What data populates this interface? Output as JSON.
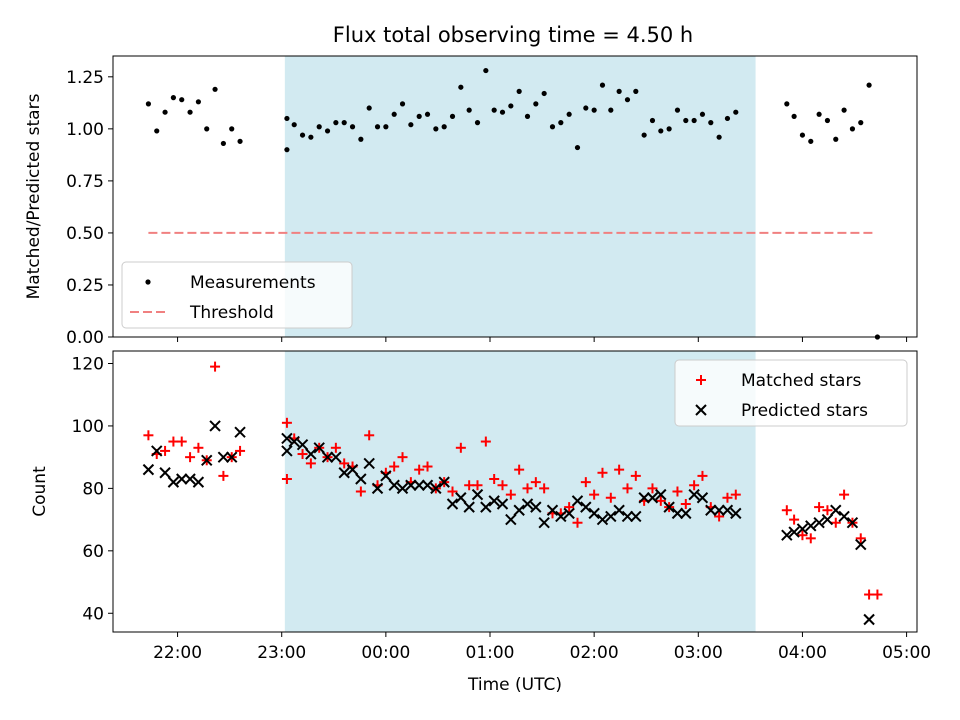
{
  "figure": {
    "title": "Flux total observing time = 4.50 h"
  },
  "chart_data": [
    {
      "type": "scatter",
      "panel": "top",
      "ylabel": "Matched/Predicted stars",
      "ylim": [
        0,
        1.35
      ],
      "yticks": [
        "0.00",
        "0.25",
        "0.50",
        "0.75",
        "1.00",
        "1.25"
      ],
      "xlim_hours": [
        21.38,
        29.1
      ],
      "shaded_span_hours": [
        23.03,
        27.55
      ],
      "shade_color": "#add8e6",
      "grid": false,
      "legend": {
        "placement": "lower-left",
        "entries": [
          "Measurements",
          "Threshold"
        ]
      },
      "threshold": {
        "name": "Threshold",
        "value": 0.5,
        "x_range_hours": [
          21.72,
          28.7
        ],
        "color": "#f08080"
      },
      "series": [
        {
          "name": "Measurements",
          "color": "#000000",
          "marker": "dot",
          "points": [
            [
              21.72,
              1.12
            ],
            [
              21.8,
              0.99
            ],
            [
              21.88,
              1.08
            ],
            [
              21.96,
              1.15
            ],
            [
              22.04,
              1.14
            ],
            [
              22.12,
              1.08
            ],
            [
              22.2,
              1.13
            ],
            [
              22.28,
              1.0
            ],
            [
              22.36,
              1.19
            ],
            [
              22.44,
              0.93
            ],
            [
              22.52,
              1.0
            ],
            [
              22.6,
              0.94
            ],
            [
              23.05,
              1.05
            ],
            [
              23.05,
              0.9
            ],
            [
              23.12,
              1.02
            ],
            [
              23.2,
              0.97
            ],
            [
              23.28,
              0.96
            ],
            [
              23.36,
              1.01
            ],
            [
              23.44,
              0.99
            ],
            [
              23.52,
              1.03
            ],
            [
              23.6,
              1.03
            ],
            [
              23.68,
              1.01
            ],
            [
              23.76,
              0.95
            ],
            [
              23.84,
              1.1
            ],
            [
              23.92,
              1.01
            ],
            [
              24.0,
              1.01
            ],
            [
              24.08,
              1.07
            ],
            [
              24.16,
              1.12
            ],
            [
              24.24,
              1.02
            ],
            [
              24.32,
              1.06
            ],
            [
              24.4,
              1.07
            ],
            [
              24.48,
              1.0
            ],
            [
              24.56,
              1.01
            ],
            [
              24.64,
              1.06
            ],
            [
              24.72,
              1.2
            ],
            [
              24.8,
              1.09
            ],
            [
              24.88,
              1.03
            ],
            [
              24.96,
              1.28
            ],
            [
              25.04,
              1.09
            ],
            [
              25.12,
              1.08
            ],
            [
              25.2,
              1.11
            ],
            [
              25.28,
              1.18
            ],
            [
              25.36,
              1.06
            ],
            [
              25.44,
              1.12
            ],
            [
              25.52,
              1.17
            ],
            [
              25.6,
              1.01
            ],
            [
              25.68,
              1.03
            ],
            [
              25.76,
              1.07
            ],
            [
              25.84,
              0.91
            ],
            [
              25.92,
              1.1
            ],
            [
              26.0,
              1.09
            ],
            [
              26.08,
              1.21
            ],
            [
              26.16,
              1.09
            ],
            [
              26.24,
              1.18
            ],
            [
              26.32,
              1.14
            ],
            [
              26.4,
              1.18
            ],
            [
              26.48,
              0.97
            ],
            [
              26.56,
              1.04
            ],
            [
              26.64,
              0.99
            ],
            [
              26.72,
              1.0
            ],
            [
              26.8,
              1.09
            ],
            [
              26.88,
              1.04
            ],
            [
              26.96,
              1.04
            ],
            [
              27.04,
              1.07
            ],
            [
              27.12,
              1.03
            ],
            [
              27.2,
              0.96
            ],
            [
              27.28,
              1.05
            ],
            [
              27.36,
              1.08
            ],
            [
              27.85,
              1.12
            ],
            [
              27.92,
              1.06
            ],
            [
              28.0,
              0.97
            ],
            [
              28.08,
              0.94
            ],
            [
              28.16,
              1.07
            ],
            [
              28.24,
              1.04
            ],
            [
              28.32,
              0.95
            ],
            [
              28.4,
              1.09
            ],
            [
              28.48,
              1.0
            ],
            [
              28.56,
              1.03
            ],
            [
              28.64,
              1.21
            ],
            [
              28.72,
              0.0
            ]
          ]
        }
      ]
    },
    {
      "type": "scatter",
      "panel": "bottom",
      "xlabel": "Time (UTC)",
      "ylabel": "Count",
      "ylim": [
        34,
        124
      ],
      "yticks": [
        "40",
        "60",
        "80",
        "100",
        "120"
      ],
      "xticks": [
        "22:00",
        "23:00",
        "00:00",
        "01:00",
        "02:00",
        "03:00",
        "04:00",
        "05:00"
      ],
      "xlim_hours": [
        21.38,
        29.1
      ],
      "shaded_span_hours": [
        23.03,
        27.55
      ],
      "grid": false,
      "legend": {
        "placement": "top-right",
        "entries": [
          "Matched stars",
          "Predicted stars"
        ]
      },
      "series": [
        {
          "name": "Matched stars",
          "color": "#ff0000",
          "marker": "plus",
          "points": [
            [
              21.72,
              97
            ],
            [
              21.8,
              91
            ],
            [
              21.88,
              92
            ],
            [
              21.96,
              95
            ],
            [
              22.04,
              95
            ],
            [
              22.12,
              90
            ],
            [
              22.2,
              93
            ],
            [
              22.28,
              89
            ],
            [
              22.36,
              119
            ],
            [
              22.44,
              84
            ],
            [
              22.52,
              90
            ],
            [
              22.6,
              92
            ],
            [
              23.05,
              101
            ],
            [
              23.05,
              83
            ],
            [
              23.12,
              96
            ],
            [
              23.2,
              91
            ],
            [
              23.28,
              88
            ],
            [
              23.36,
              93
            ],
            [
              23.44,
              90
            ],
            [
              23.52,
              93
            ],
            [
              23.6,
              88
            ],
            [
              23.68,
              87
            ],
            [
              23.76,
              79
            ],
            [
              23.84,
              97
            ],
            [
              23.92,
              81
            ],
            [
              24.0,
              85
            ],
            [
              24.08,
              87
            ],
            [
              24.16,
              90
            ],
            [
              24.24,
              82
            ],
            [
              24.32,
              86
            ],
            [
              24.4,
              87
            ],
            [
              24.48,
              80
            ],
            [
              24.56,
              82
            ],
            [
              24.64,
              79
            ],
            [
              24.72,
              93
            ],
            [
              24.8,
              81
            ],
            [
              24.88,
              81
            ],
            [
              24.96,
              95
            ],
            [
              25.04,
              83
            ],
            [
              25.12,
              81
            ],
            [
              25.2,
              78
            ],
            [
              25.28,
              86
            ],
            [
              25.36,
              80
            ],
            [
              25.44,
              82
            ],
            [
              25.52,
              80
            ],
            [
              25.6,
              72
            ],
            [
              25.68,
              72
            ],
            [
              25.76,
              74
            ],
            [
              25.84,
              69
            ],
            [
              25.92,
              82
            ],
            [
              26.0,
              78
            ],
            [
              26.08,
              85
            ],
            [
              26.16,
              77
            ],
            [
              26.24,
              86
            ],
            [
              26.32,
              80
            ],
            [
              26.4,
              84
            ],
            [
              26.48,
              76
            ],
            [
              26.56,
              80
            ],
            [
              26.64,
              76
            ],
            [
              26.72,
              74
            ],
            [
              26.8,
              79
            ],
            [
              26.88,
              75
            ],
            [
              26.96,
              81
            ],
            [
              27.04,
              84
            ],
            [
              27.12,
              74
            ],
            [
              27.2,
              71
            ],
            [
              27.28,
              77
            ],
            [
              27.36,
              78
            ],
            [
              27.85,
              73
            ],
            [
              27.92,
              70
            ],
            [
              28.0,
              65
            ],
            [
              28.08,
              64
            ],
            [
              28.16,
              74
            ],
            [
              28.24,
              73
            ],
            [
              28.32,
              69
            ],
            [
              28.4,
              78
            ],
            [
              28.48,
              69
            ],
            [
              28.56,
              64
            ],
            [
              28.64,
              46
            ],
            [
              28.72,
              46
            ]
          ]
        },
        {
          "name": "Predicted stars",
          "color": "#000000",
          "marker": "x",
          "points": [
            [
              21.72,
              86
            ],
            [
              21.8,
              92
            ],
            [
              21.88,
              85
            ],
            [
              21.96,
              82
            ],
            [
              22.04,
              83
            ],
            [
              22.12,
              83
            ],
            [
              22.2,
              82
            ],
            [
              22.28,
              89
            ],
            [
              22.36,
              100
            ],
            [
              22.44,
              90
            ],
            [
              22.52,
              90
            ],
            [
              22.6,
              98
            ],
            [
              23.05,
              96
            ],
            [
              23.05,
              92
            ],
            [
              23.12,
              95
            ],
            [
              23.2,
              94
            ],
            [
              23.28,
              91
            ],
            [
              23.36,
              93
            ],
            [
              23.44,
              90
            ],
            [
              23.52,
              90
            ],
            [
              23.6,
              85
            ],
            [
              23.68,
              86
            ],
            [
              23.76,
              83
            ],
            [
              23.84,
              88
            ],
            [
              23.92,
              80
            ],
            [
              24.0,
              84
            ],
            [
              24.08,
              81
            ],
            [
              24.16,
              80
            ],
            [
              24.24,
              81
            ],
            [
              24.32,
              81
            ],
            [
              24.4,
              81
            ],
            [
              24.48,
              80
            ],
            [
              24.56,
              82
            ],
            [
              24.64,
              75
            ],
            [
              24.72,
              77
            ],
            [
              24.8,
              74
            ],
            [
              24.88,
              78
            ],
            [
              24.96,
              74
            ],
            [
              25.04,
              76
            ],
            [
              25.12,
              75
            ],
            [
              25.2,
              70
            ],
            [
              25.28,
              73
            ],
            [
              25.36,
              75
            ],
            [
              25.44,
              74
            ],
            [
              25.52,
              69
            ],
            [
              25.6,
              73
            ],
            [
              25.68,
              71
            ],
            [
              25.76,
              72
            ],
            [
              25.84,
              76
            ],
            [
              25.92,
              74
            ],
            [
              26.0,
              72
            ],
            [
              26.08,
              70
            ],
            [
              26.16,
              71
            ],
            [
              26.24,
              73
            ],
            [
              26.32,
              71
            ],
            [
              26.4,
              71
            ],
            [
              26.48,
              77
            ],
            [
              26.56,
              77
            ],
            [
              26.64,
              78
            ],
            [
              26.72,
              74
            ],
            [
              26.8,
              72
            ],
            [
              26.88,
              72
            ],
            [
              26.96,
              78
            ],
            [
              27.04,
              77
            ],
            [
              27.12,
              73
            ],
            [
              27.2,
              73
            ],
            [
              27.28,
              73
            ],
            [
              27.36,
              72
            ],
            [
              27.85,
              65
            ],
            [
              27.92,
              66
            ],
            [
              28.0,
              67
            ],
            [
              28.08,
              68
            ],
            [
              28.16,
              69
            ],
            [
              28.24,
              70
            ],
            [
              28.32,
              73
            ],
            [
              28.4,
              71
            ],
            [
              28.48,
              69
            ],
            [
              28.56,
              62
            ],
            [
              28.64,
              38
            ]
          ]
        }
      ]
    }
  ]
}
